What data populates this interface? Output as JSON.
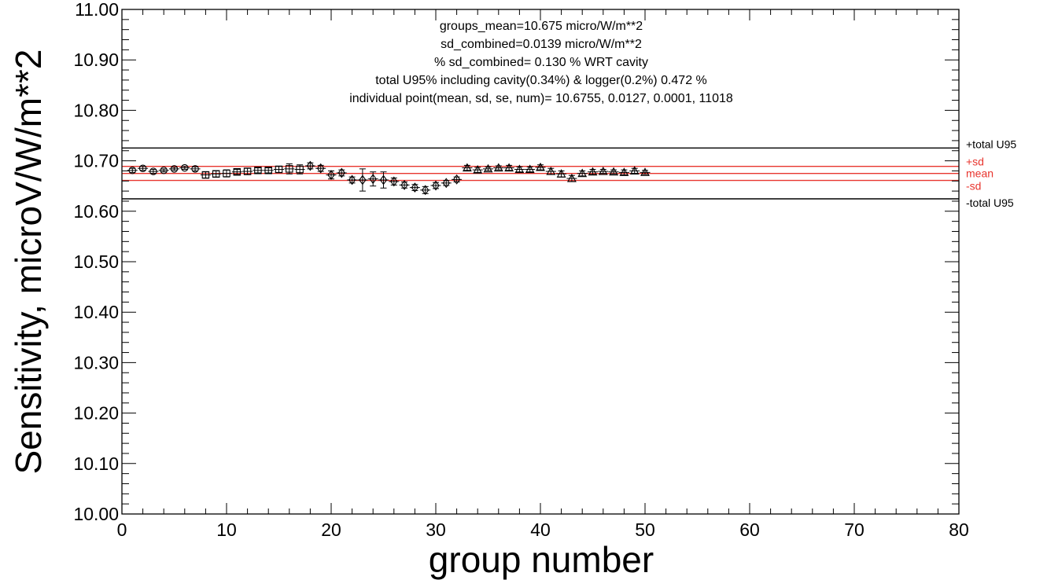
{
  "chart_data": {
    "type": "scatter",
    "title": "",
    "xlabel": "group number",
    "ylabel": "Sensitivity, microV/W/m**2",
    "xlim": [
      0,
      80
    ],
    "ylim": [
      10.0,
      11.0
    ],
    "xticks": [
      0,
      10,
      20,
      30,
      40,
      50,
      60,
      70,
      80
    ],
    "xtick_labels": [
      "0",
      "10",
      "20",
      "30",
      "40",
      "50",
      "60",
      "70",
      "80"
    ],
    "yticks": [
      10.0,
      10.1,
      10.2,
      10.3,
      10.4,
      10.5,
      10.6,
      10.7,
      10.8,
      10.9,
      11.0
    ],
    "ytick_labels": [
      "10.00",
      "10.10",
      "10.20",
      "10.30",
      "10.40",
      "10.50",
      "10.60",
      "10.70",
      "10.80",
      "10.90",
      "11.00"
    ],
    "grid": false,
    "annotations": [
      "groups_mean=10.675 micro/W/m**2",
      "sd_combined=0.0139 micro/W/m**2",
      "% sd_combined= 0.130 % WRT cavity",
      "total U95% including cavity(0.34%) & logger(0.2%) 0.472 %",
      "individual point(mean, sd, se, num)= 10.6755,  0.0127,  0.0001, 11018"
    ],
    "reference_lines": [
      {
        "label": "+total U95",
        "value": 10.7254,
        "color": "#000000"
      },
      {
        "label": "+sd",
        "value": 10.6889,
        "color": "#e8352e"
      },
      {
        "label": "mean",
        "value": 10.675,
        "color": "#e8352e"
      },
      {
        "label": "-sd",
        "value": 10.6611,
        "color": "#e8352e"
      },
      {
        "label": "-total U95",
        "value": 10.6246,
        "color": "#000000"
      }
    ],
    "series": [
      {
        "marker": "circle",
        "x": [
          1,
          2,
          3,
          4,
          5,
          6,
          7
        ],
        "values": [
          10.681,
          10.685,
          10.679,
          10.681,
          10.684,
          10.686,
          10.684
        ],
        "errors": [
          0.004,
          0.004,
          0.004,
          0.003,
          0.003,
          0.003,
          0.004
        ]
      },
      {
        "marker": "square",
        "x": [
          8,
          9,
          10,
          11,
          12,
          13,
          14,
          15,
          16,
          17
        ],
        "values": [
          10.672,
          10.674,
          10.675,
          10.678,
          10.679,
          10.681,
          10.681,
          10.683,
          10.684,
          10.683
        ],
        "errors": [
          0.006,
          0.006,
          0.007,
          0.005,
          0.006,
          0.005,
          0.005,
          0.006,
          0.01,
          0.009
        ]
      },
      {
        "marker": "diamond",
        "x": [
          18,
          19,
          20,
          21,
          22,
          23,
          24,
          25,
          26,
          27,
          28,
          29,
          30,
          31,
          32
        ],
        "values": [
          10.69,
          10.685,
          10.672,
          10.676,
          10.662,
          10.662,
          10.664,
          10.662,
          10.659,
          10.652,
          10.647,
          10.642,
          10.651,
          10.656,
          10.663
        ],
        "errors": [
          0.006,
          0.006,
          0.008,
          0.006,
          0.006,
          0.022,
          0.014,
          0.016,
          0.007,
          0.006,
          0.006,
          0.007,
          0.006,
          0.005,
          0.005
        ]
      },
      {
        "marker": "triangle",
        "x": [
          33,
          34,
          35,
          36,
          37,
          38,
          39,
          40,
          41,
          42,
          43,
          44,
          45,
          46,
          47,
          48,
          49,
          50
        ],
        "values": [
          10.686,
          10.682,
          10.684,
          10.686,
          10.686,
          10.683,
          10.683,
          10.687,
          10.679,
          10.674,
          10.665,
          10.675,
          10.678,
          10.679,
          10.678,
          10.677,
          10.68,
          10.677
        ],
        "errors": [
          0.005,
          0.005,
          0.004,
          0.004,
          0.005,
          0.005,
          0.005,
          0.005,
          0.006,
          0.006,
          0.006,
          0.005,
          0.005,
          0.004,
          0.004,
          0.005,
          0.005,
          0.004
        ]
      }
    ]
  }
}
